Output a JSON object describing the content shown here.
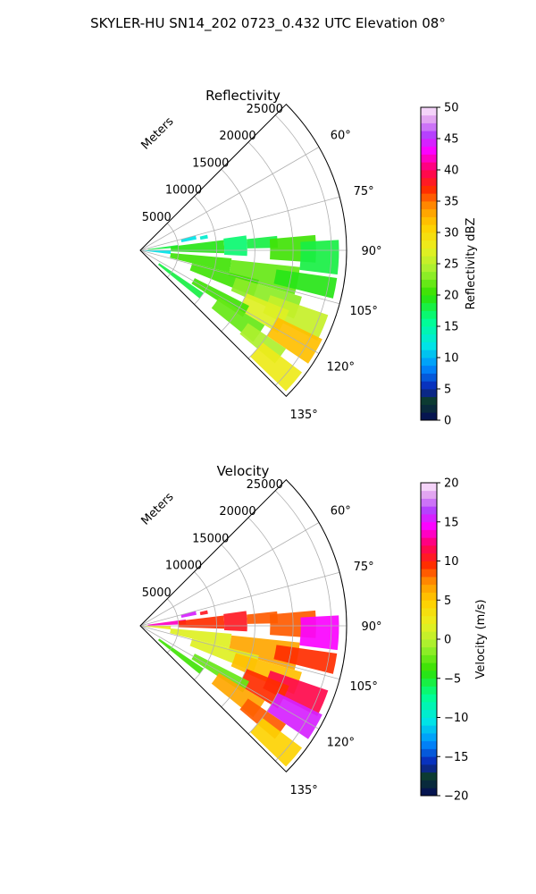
{
  "figure": {
    "title": "SKYLER-HU  SN14_202  0723_0.432 UTC Elevation 08°"
  },
  "colors": {
    "background": "#ffffff",
    "grid": "#b0b0b0",
    "frame": "#000000"
  },
  "chart_data": [
    {
      "type": "heatmap",
      "projection": "polar-sector",
      "title": "Reflectivity",
      "radial_label": "Meters",
      "radial_ticks": [
        "5000",
        "10000",
        "15000",
        "20000",
        "25000"
      ],
      "radial_tick_values": [
        5000,
        10000,
        15000,
        20000,
        25000
      ],
      "r_max": 27000,
      "angle_ticks": [
        "60°",
        "75°",
        "90°",
        "105°",
        "120°",
        "135°"
      ],
      "angle_tick_values": [
        60,
        75,
        90,
        105,
        120,
        135
      ],
      "angle_range": [
        45,
        135
      ],
      "grid": true,
      "colorbar": {
        "label": "Reflectivity dBZ",
        "range": [
          0,
          50
        ],
        "ticks": [
          "0",
          "5",
          "10",
          "15",
          "20",
          "25",
          "30",
          "35",
          "40",
          "45",
          "50"
        ],
        "tick_values": [
          0,
          5,
          10,
          15,
          20,
          25,
          30,
          35,
          40,
          45,
          50
        ]
      },
      "cells": [
        {
          "az": [
            75,
            79
          ],
          "r": [
            5500,
            7500
          ],
          "v": 12
        },
        {
          "az": [
            77,
            80
          ],
          "r": [
            8000,
            9000
          ],
          "v": 13
        },
        {
          "az": [
            82,
            86
          ],
          "r": [
            1000,
            5000
          ],
          "v": 18
        },
        {
          "az": [
            83,
            92
          ],
          "r": [
            4000,
            11000
          ],
          "v": 19
        },
        {
          "az": [
            82,
            93
          ],
          "r": [
            11000,
            14000
          ],
          "v": 17
        },
        {
          "az": [
            84,
            89
          ],
          "r": [
            14000,
            18000
          ],
          "v": 18
        },
        {
          "az": [
            85,
            94
          ],
          "r": [
            17000,
            23000
          ],
          "v": 20
        },
        {
          "az": [
            87,
            97
          ],
          "r": [
            21000,
            26000
          ],
          "v": 18
        },
        {
          "az": [
            90,
            97
          ],
          "r": [
            0,
            4000
          ],
          "v": 12
        },
        {
          "az": [
            95,
            104
          ],
          "r": [
            4000,
            12000
          ],
          "v": 20
        },
        {
          "az": [
            96,
            106
          ],
          "r": [
            12000,
            21000
          ],
          "v": 22
        },
        {
          "az": [
            98,
            104
          ],
          "r": [
            18000,
            26000
          ],
          "v": 19
        },
        {
          "az": [
            104,
            112
          ],
          "r": [
            7000,
            16000
          ],
          "v": 21
        },
        {
          "az": [
            106,
            114
          ],
          "r": [
            13000,
            22000
          ],
          "v": 23
        },
        {
          "az": [
            109,
            117
          ],
          "r": [
            18000,
            26000
          ],
          "v": 26
        },
        {
          "az": [
            112,
            121
          ],
          "r": [
            15000,
            21000
          ],
          "v": 27
        },
        {
          "az": [
            116,
            124
          ],
          "r": [
            20000,
            26500
          ],
          "v": 32
        },
        {
          "az": [
            117,
            123
          ],
          "r": [
            8000,
            16000
          ],
          "v": 20
        },
        {
          "az": [
            121,
            129
          ],
          "r": [
            12000,
            19000
          ],
          "v": 22
        },
        {
          "az": [
            124,
            130
          ],
          "r": [
            17000,
            23000
          ],
          "v": 24
        },
        {
          "az": [
            127,
            134
          ],
          "r": [
            20000,
            26500
          ],
          "v": 28
        },
        {
          "az": [
            124,
            129
          ],
          "r": [
            3000,
            10000
          ],
          "v": 18
        }
      ]
    },
    {
      "type": "heatmap",
      "projection": "polar-sector",
      "title": "Velocity",
      "radial_label": "Meters",
      "radial_ticks": [
        "5000",
        "10000",
        "15000",
        "20000",
        "25000"
      ],
      "radial_tick_values": [
        5000,
        10000,
        15000,
        20000,
        25000
      ],
      "r_max": 27000,
      "angle_ticks": [
        "60°",
        "75°",
        "90°",
        "105°",
        "120°",
        "135°"
      ],
      "angle_tick_values": [
        60,
        75,
        90,
        105,
        120,
        135
      ],
      "angle_range": [
        45,
        135
      ],
      "grid": true,
      "colorbar": {
        "label": "Velocity (m/s)",
        "range": [
          -20,
          20
        ],
        "ticks": [
          "−20",
          "−15",
          "−10",
          "−5",
          "0",
          "5",
          "10",
          "15",
          "20"
        ],
        "tick_values": [
          -20,
          -15,
          -10,
          -5,
          0,
          5,
          10,
          15,
          20
        ]
      },
      "cells": [
        {
          "az": [
            75,
            79
          ],
          "r": [
            5500,
            7500
          ],
          "v": 15
        },
        {
          "az": [
            77,
            80
          ],
          "r": [
            8000,
            9000
          ],
          "v": 10
        },
        {
          "az": [
            82,
            88
          ],
          "r": [
            1000,
            6000
          ],
          "v": 13
        },
        {
          "az": [
            83,
            92
          ],
          "r": [
            5000,
            11000
          ],
          "v": 9
        },
        {
          "az": [
            82,
            93
          ],
          "r": [
            11000,
            14000
          ],
          "v": 10
        },
        {
          "az": [
            84,
            89
          ],
          "r": [
            14000,
            18000
          ],
          "v": 8
        },
        {
          "az": [
            85,
            94
          ],
          "r": [
            17000,
            23000
          ],
          "v": 8
        },
        {
          "az": [
            87,
            97
          ],
          "r": [
            21000,
            26000
          ],
          "v": 14
        },
        {
          "az": [
            90,
            97
          ],
          "r": [
            0,
            4000
          ],
          "v": 2
        },
        {
          "az": [
            95,
            104
          ],
          "r": [
            4000,
            12000
          ],
          "v": 1
        },
        {
          "az": [
            96,
            106
          ],
          "r": [
            12000,
            21000
          ],
          "v": 6
        },
        {
          "az": [
            98,
            104
          ],
          "r": [
            18000,
            26000
          ],
          "v": 9
        },
        {
          "az": [
            104,
            112
          ],
          "r": [
            7000,
            16000
          ],
          "v": 1
        },
        {
          "az": [
            106,
            114
          ],
          "r": [
            13000,
            22000
          ],
          "v": 5
        },
        {
          "az": [
            109,
            117
          ],
          "r": [
            18000,
            26000
          ],
          "v": 11
        },
        {
          "az": [
            112,
            121
          ],
          "r": [
            15000,
            21000
          ],
          "v": 9
        },
        {
          "az": [
            116,
            124
          ],
          "r": [
            20000,
            26500
          ],
          "v": 15
        },
        {
          "az": [
            117,
            123
          ],
          "r": [
            8000,
            16000
          ],
          "v": -3
        },
        {
          "az": [
            121,
            129
          ],
          "r": [
            12000,
            19000
          ],
          "v": 6
        },
        {
          "az": [
            124,
            130
          ],
          "r": [
            17000,
            23000
          ],
          "v": 8
        },
        {
          "az": [
            127,
            134
          ],
          "r": [
            20000,
            26500
          ],
          "v": 4
        },
        {
          "az": [
            124,
            129
          ],
          "r": [
            3000,
            10000
          ],
          "v": -4
        }
      ]
    }
  ]
}
